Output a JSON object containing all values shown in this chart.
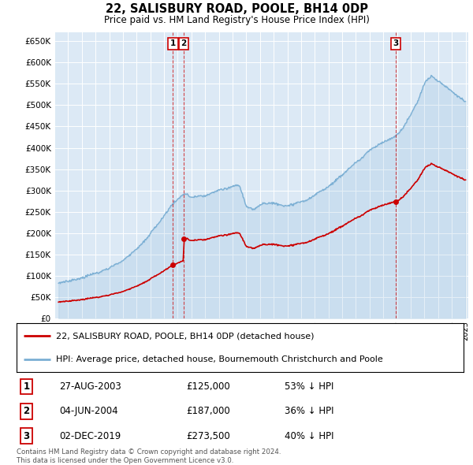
{
  "title": "22, SALISBURY ROAD, POOLE, BH14 0DP",
  "subtitle": "Price paid vs. HM Land Registry's House Price Index (HPI)",
  "plot_bg_color": "#dce9f5",
  "ylim": [
    0,
    670000
  ],
  "yticks": [
    0,
    50000,
    100000,
    150000,
    200000,
    250000,
    300000,
    350000,
    400000,
    450000,
    500000,
    550000,
    600000,
    650000
  ],
  "sales": [
    {
      "date_num": 2003.648,
      "price": 125000,
      "label": "1"
    },
    {
      "date_num": 2004.423,
      "price": 187000,
      "label": "2"
    },
    {
      "date_num": 2019.921,
      "price": 273500,
      "label": "3"
    }
  ],
  "sales_color": "#cc0000",
  "hpi_color": "#7bafd4",
  "table_rows": [
    {
      "num": "1",
      "date": "27-AUG-2003",
      "price": "£125,000",
      "hpi": "53% ↓ HPI"
    },
    {
      "num": "2",
      "date": "04-JUN-2004",
      "price": "£187,000",
      "hpi": "36% ↓ HPI"
    },
    {
      "num": "3",
      "date": "02-DEC-2019",
      "price": "£273,500",
      "hpi": "40% ↓ HPI"
    }
  ],
  "footnote": "Contains HM Land Registry data © Crown copyright and database right 2024.\nThis data is licensed under the Open Government Licence v3.0.",
  "legend_entries": [
    "22, SALISBURY ROAD, POOLE, BH14 0DP (detached house)",
    "HPI: Average price, detached house, Bournemouth Christchurch and Poole"
  ],
  "xlim_start": 1995.3,
  "xlim_end": 2025.2
}
